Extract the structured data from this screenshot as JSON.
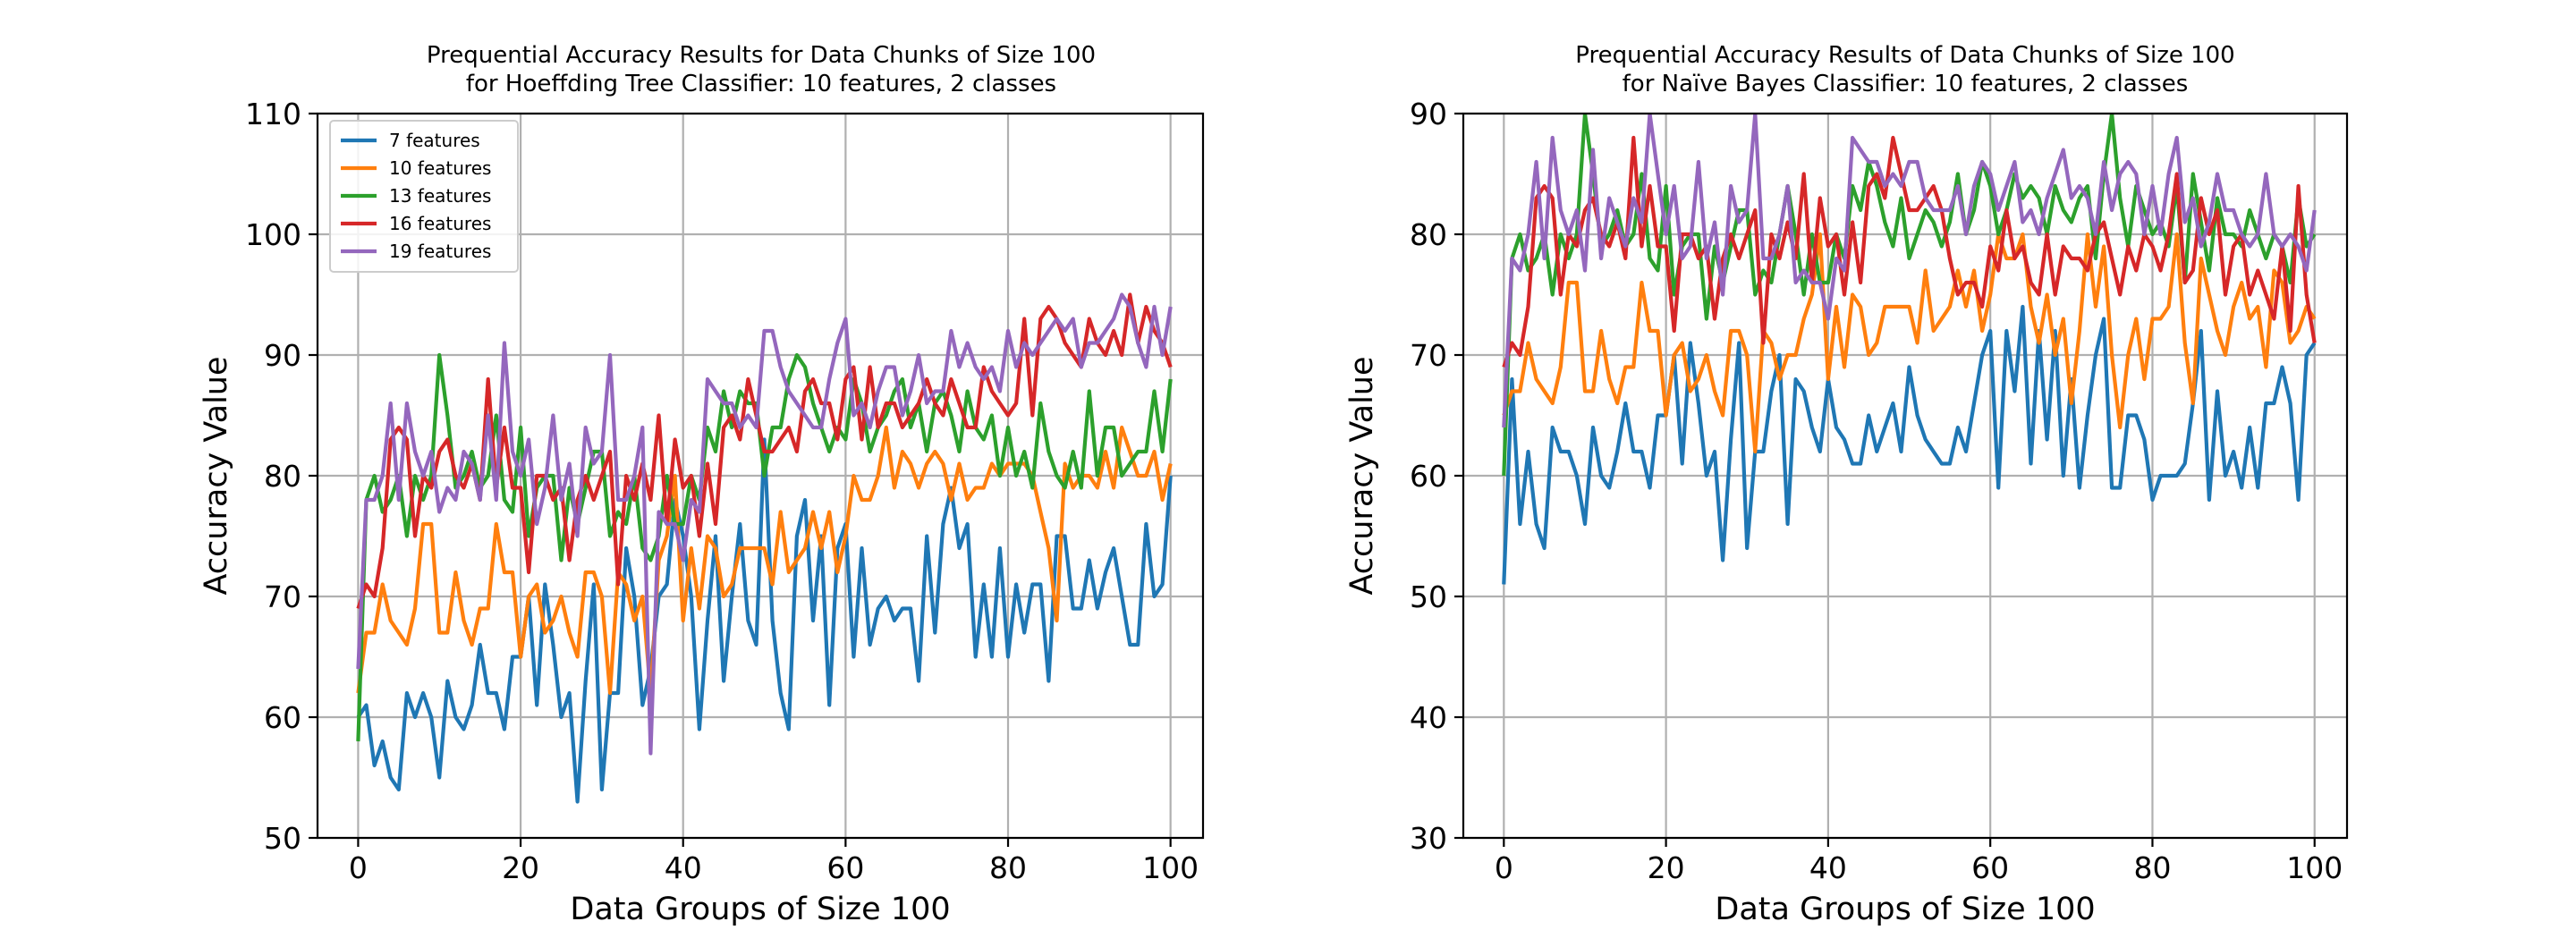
{
  "chart_data": [
    {
      "type": "line",
      "title": "Prequential Accuracy Results for Data Chunks of Size 100\nfor Hoeffding Tree Classifier: 10 features, 2 classes",
      "title_lines": [
        "Prequential Accuracy Results for Data Chunks of Size 100",
        "for Hoeffding Tree Classifier: 10 features, 2 classes"
      ],
      "xlabel": "Data Groups of Size 100",
      "ylabel": "Accuracy Value",
      "xlim": [
        -5,
        104
      ],
      "ylim": [
        50,
        110
      ],
      "xticks": [
        0,
        20,
        40,
        60,
        80,
        100
      ],
      "yticks": [
        50,
        60,
        70,
        80,
        90,
        100,
        110
      ],
      "xtick_labels": [
        "0",
        "20",
        "40",
        "60",
        "80",
        "100"
      ],
      "ytick_labels": [
        "50",
        "60",
        "70",
        "80",
        "90",
        "100",
        "110"
      ],
      "grid": true,
      "legend": "top-left",
      "x_start": 0,
      "series": [
        {
          "name": "7 features",
          "color": "#1f77b4",
          "values": [
            60,
            61,
            56,
            58,
            55,
            54,
            62,
            60,
            62,
            60,
            55,
            63,
            60,
            59,
            61,
            66,
            62,
            62,
            59,
            65,
            65,
            70,
            61,
            71,
            66,
            60,
            62,
            53,
            63,
            71,
            54,
            62,
            62,
            74,
            70,
            61,
            64,
            70,
            71,
            78,
            75,
            70,
            59,
            68,
            75,
            63,
            70,
            76,
            68,
            66,
            83,
            68,
            62,
            59,
            75,
            78,
            68,
            75,
            61,
            74,
            76,
            65,
            74,
            66,
            69,
            70,
            68,
            69,
            69,
            63,
            75,
            67,
            76,
            79,
            74,
            76,
            65,
            71,
            65,
            74,
            65,
            71,
            67,
            71,
            71,
            63,
            75,
            75,
            69,
            69,
            73,
            69,
            72,
            74,
            70,
            66,
            66,
            76,
            70,
            71,
            80
          ]
        },
        {
          "name": "10 features",
          "color": "#ff7f0e",
          "values": [
            62,
            67,
            67,
            71,
            68,
            67,
            66,
            69,
            76,
            76,
            67,
            67,
            72,
            68,
            66,
            69,
            69,
            76,
            72,
            72,
            65,
            70,
            71,
            67,
            68,
            70,
            67,
            65,
            72,
            72,
            70,
            62,
            72,
            71,
            68,
            70,
            62,
            73,
            75,
            80,
            68,
            74,
            69,
            75,
            74,
            70,
            71,
            74,
            74,
            74,
            74,
            71,
            77,
            72,
            73,
            74,
            77,
            74,
            77,
            72,
            75,
            80,
            78,
            78,
            80,
            84,
            79,
            82,
            81,
            79,
            81,
            82,
            81,
            78,
            81,
            78,
            79,
            79,
            81,
            80,
            81,
            81,
            81,
            80,
            77,
            74,
            68,
            81,
            79,
            80,
            80,
            79,
            82,
            79,
            84,
            82,
            80,
            80,
            82,
            78,
            81
          ]
        },
        {
          "name": "13 features",
          "color": "#2ca02c",
          "values": [
            58,
            78,
            80,
            77,
            78,
            80,
            75,
            80,
            78,
            80,
            90,
            85,
            79,
            80,
            82,
            79,
            80,
            85,
            78,
            77,
            84,
            75,
            79,
            80,
            80,
            73,
            79,
            76,
            79,
            82,
            82,
            75,
            77,
            76,
            80,
            74,
            73,
            75,
            80,
            76,
            76,
            80,
            78,
            84,
            82,
            87,
            84,
            87,
            86,
            86,
            80,
            84,
            84,
            88,
            90,
            89,
            86,
            84,
            82,
            84,
            83,
            88,
            86,
            82,
            84,
            85,
            87,
            88,
            84,
            86,
            82,
            86,
            87,
            85,
            82,
            87,
            84,
            83,
            85,
            80,
            84,
            80,
            82,
            79,
            86,
            82,
            80,
            79,
            82,
            79,
            87,
            80,
            84,
            84,
            80,
            81,
            82,
            82,
            87,
            82,
            88
          ]
        },
        {
          "name": "16 features",
          "color": "#d62728",
          "values": [
            69,
            71,
            70,
            74,
            83,
            84,
            83,
            75,
            80,
            79,
            82,
            83,
            80,
            79,
            81,
            78,
            88,
            79,
            84,
            79,
            79,
            72,
            80,
            80,
            78,
            79,
            73,
            78,
            80,
            78,
            80,
            82,
            71,
            80,
            78,
            81,
            78,
            85,
            76,
            83,
            79,
            80,
            75,
            81,
            76,
            84,
            85,
            83,
            88,
            85,
            82,
            82,
            83,
            84,
            82,
            87,
            88,
            86,
            86,
            83,
            88,
            89,
            83,
            89,
            84,
            86,
            86,
            84,
            85,
            86,
            88,
            86,
            85,
            88,
            86,
            84,
            84,
            89,
            87,
            86,
            85,
            86,
            93,
            85,
            93,
            94,
            93,
            91,
            90,
            89,
            93,
            91,
            90,
            92,
            90,
            95,
            91,
            94,
            92,
            91,
            89
          ]
        },
        {
          "name": "19 features",
          "color": "#9467bd",
          "values": [
            64,
            78,
            78,
            80,
            86,
            78,
            86,
            82,
            80,
            82,
            77,
            79,
            78,
            82,
            81,
            78,
            85,
            78,
            91,
            82,
            80,
            83,
            76,
            79,
            85,
            78,
            81,
            75,
            84,
            81,
            82,
            90,
            78,
            78,
            80,
            84,
            57,
            77,
            76,
            76,
            73,
            78,
            77,
            88,
            87,
            86,
            86,
            84,
            85,
            84,
            92,
            92,
            89,
            87,
            86,
            85,
            84,
            84,
            88,
            91,
            93,
            85,
            86,
            84,
            87,
            89,
            89,
            85,
            87,
            90,
            86,
            87,
            87,
            92,
            89,
            91,
            89,
            88,
            89,
            87,
            92,
            89,
            91,
            90,
            91,
            92,
            93,
            92,
            93,
            89,
            91,
            91,
            92,
            93,
            95,
            94,
            91,
            89,
            94,
            90,
            94
          ]
        }
      ]
    },
    {
      "type": "line",
      "title": "Prequential Accuracy Results of Data Chunks of Size 100\nfor Naïve Bayes Classifier: 10 features, 2 classes",
      "title_lines": [
        "Prequential Accuracy Results of Data Chunks of Size 100",
        "for Naïve Bayes Classifier: 10 features, 2 classes"
      ],
      "xlabel": "Data Groups of Size 100",
      "ylabel": "Accuracy Value",
      "xlim": [
        -5,
        104
      ],
      "ylim": [
        30,
        90
      ],
      "xticks": [
        0,
        20,
        40,
        60,
        80,
        100
      ],
      "yticks": [
        30,
        40,
        50,
        60,
        70,
        80,
        90
      ],
      "xtick_labels": [
        "0",
        "20",
        "40",
        "60",
        "80",
        "100"
      ],
      "ytick_labels": [
        "30",
        "40",
        "50",
        "60",
        "70",
        "80",
        "90"
      ],
      "grid": true,
      "legend": "none",
      "x_start": 0,
      "series": [
        {
          "name": "7 features",
          "color": "#1f77b4",
          "values": [
            51,
            68,
            56,
            62,
            56,
            54,
            64,
            62,
            62,
            60,
            56,
            64,
            60,
            59,
            62,
            66,
            62,
            62,
            59,
            65,
            65,
            70,
            61,
            71,
            66,
            60,
            62,
            53,
            63,
            71,
            54,
            62,
            62,
            67,
            70,
            56,
            68,
            67,
            64,
            62,
            68,
            64,
            63,
            61,
            61,
            65,
            62,
            64,
            66,
            62,
            69,
            65,
            63,
            62,
            61,
            61,
            64,
            62,
            66,
            70,
            72,
            59,
            72,
            67,
            74,
            61,
            72,
            63,
            72,
            60,
            68,
            59,
            65,
            70,
            73,
            59,
            59,
            65,
            65,
            63,
            58,
            60,
            60,
            60,
            61,
            66,
            72,
            58,
            67,
            60,
            62,
            59,
            64,
            59,
            66,
            66,
            69,
            66,
            58,
            70,
            71
          ]
        },
        {
          "name": "10 features",
          "color": "#ff7f0e",
          "values": [
            65,
            67,
            67,
            71,
            68,
            67,
            66,
            69,
            76,
            76,
            67,
            67,
            72,
            68,
            66,
            69,
            69,
            76,
            72,
            72,
            65,
            70,
            71,
            67,
            68,
            70,
            67,
            65,
            72,
            72,
            70,
            62,
            72,
            71,
            68,
            70,
            70,
            73,
            75,
            80,
            68,
            74,
            69,
            75,
            74,
            70,
            71,
            74,
            74,
            74,
            74,
            71,
            77,
            72,
            73,
            74,
            77,
            74,
            77,
            72,
            75,
            80,
            78,
            78,
            80,
            74,
            71,
            75,
            70,
            73,
            66,
            72,
            80,
            74,
            79,
            70,
            64,
            70,
            73,
            68,
            73,
            73,
            74,
            80,
            71,
            66,
            78,
            75,
            72,
            70,
            74,
            76,
            73,
            74,
            69,
            77,
            76,
            71,
            72,
            74,
            73
          ]
        },
        {
          "name": "13 features",
          "color": "#2ca02c",
          "values": [
            60,
            78,
            80,
            77,
            78,
            80,
            75,
            80,
            78,
            80,
            90,
            85,
            79,
            80,
            82,
            79,
            80,
            85,
            78,
            77,
            84,
            75,
            79,
            80,
            80,
            73,
            79,
            76,
            79,
            82,
            82,
            75,
            77,
            76,
            80,
            84,
            80,
            75,
            80,
            76,
            76,
            80,
            78,
            84,
            82,
            86,
            84,
            81,
            79,
            83,
            78,
            80,
            82,
            81,
            79,
            81,
            85,
            80,
            82,
            86,
            84,
            80,
            82,
            85,
            83,
            84,
            83,
            80,
            84,
            82,
            81,
            83,
            84,
            78,
            85,
            90,
            83,
            79,
            84,
            82,
            80,
            81,
            79,
            84,
            76,
            85,
            81,
            77,
            83,
            80,
            80,
            79,
            82,
            80,
            78,
            80,
            79,
            76,
            83,
            79,
            80
          ]
        },
        {
          "name": "16 features",
          "color": "#d62728",
          "values": [
            69,
            71,
            70,
            74,
            83,
            84,
            83,
            75,
            80,
            79,
            82,
            83,
            80,
            79,
            81,
            78,
            88,
            79,
            84,
            79,
            79,
            72,
            80,
            80,
            78,
            79,
            73,
            78,
            80,
            78,
            80,
            82,
            71,
            80,
            78,
            81,
            78,
            85,
            76,
            83,
            79,
            80,
            75,
            81,
            76,
            84,
            85,
            83,
            88,
            85,
            82,
            82,
            83,
            84,
            82,
            78,
            75,
            76,
            76,
            74,
            79,
            77,
            82,
            78,
            79,
            76,
            75,
            80,
            75,
            79,
            78,
            78,
            77,
            80,
            81,
            78,
            75,
            79,
            77,
            80,
            79,
            77,
            80,
            85,
            76,
            77,
            83,
            80,
            82,
            75,
            79,
            80,
            75,
            77,
            75,
            73,
            79,
            72,
            84,
            75,
            71
          ]
        },
        {
          "name": "19 features",
          "color": "#9467bd",
          "values": [
            64,
            78,
            77,
            80,
            86,
            78,
            88,
            82,
            80,
            82,
            77,
            87,
            78,
            83,
            81,
            79,
            83,
            81,
            90,
            85,
            80,
            84,
            78,
            79,
            86,
            78,
            81,
            75,
            84,
            81,
            82,
            90,
            78,
            78,
            80,
            84,
            76,
            77,
            76,
            76,
            73,
            78,
            77,
            88,
            87,
            86,
            86,
            84,
            85,
            84,
            86,
            86,
            83,
            82,
            82,
            82,
            84,
            80,
            84,
            86,
            85,
            82,
            84,
            86,
            81,
            82,
            80,
            83,
            85,
            87,
            83,
            84,
            83,
            80,
            86,
            82,
            85,
            86,
            85,
            80,
            84,
            80,
            85,
            88,
            81,
            83,
            79,
            81,
            85,
            82,
            82,
            80,
            79,
            80,
            85,
            80,
            79,
            80,
            79,
            77,
            82
          ]
        }
      ]
    }
  ]
}
